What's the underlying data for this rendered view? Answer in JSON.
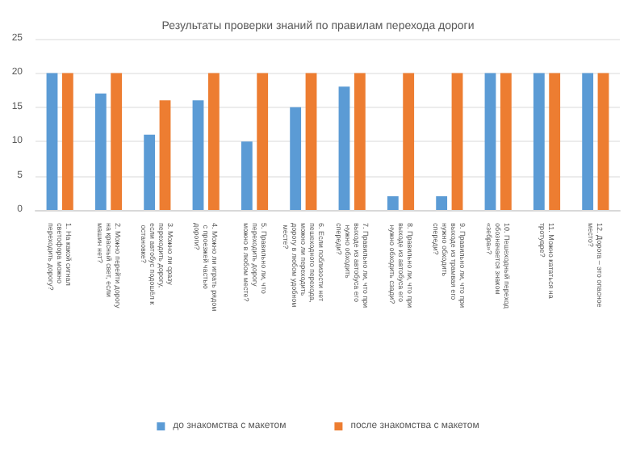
{
  "chart_data": {
    "type": "bar",
    "title": "Результаты проверки знаний по правилам перехода дороги",
    "categories": [
      "1. На какой сигнал светофора можно переходить дорогу?",
      "2. Можно перейти дорогу на красный свет, если машин нет?",
      "3. Можно ли сразу переходить дорогу, если автобус подошёл к остановке?",
      "4. Можно ли играть рядом с проезжей частью дороги?",
      "5. Правильно ли, что переходить дорогу можно в любом месте?",
      "6. Если поблизости нет пешеходного перехода, можно ли переходить дорогу в любом удобном месте?",
      "7. Правильно ли, что при выходе из автобуса его нужно обходить спереди?",
      "8. Правильно ли, что при выходе из автобуса его нужно обходить сзади?",
      "9. Правильно ли, что при выходе из трамвая его нужно обходить спереди?",
      "10. Пешеходный переход обозначается знаком «зебра»?",
      "11. Можно кататься на тротуаре?",
      "12. Дорога – это опасное место?"
    ],
    "series": [
      {
        "name": "до знакомства с макетом",
        "color": "#5b9bd5",
        "values": [
          20,
          17,
          11,
          16,
          10,
          15,
          18,
          2,
          2,
          20,
          20,
          20
        ]
      },
      {
        "name": "после знакомства с макетом",
        "color": "#ed7d31",
        "values": [
          20,
          20,
          16,
          20,
          20,
          20,
          20,
          20,
          20,
          20,
          20,
          20
        ]
      }
    ],
    "ylim": [
      0,
      25
    ],
    "yticks": [
      0,
      5,
      10,
      15,
      20,
      25
    ],
    "grid": "y",
    "legend": "bottom"
  }
}
